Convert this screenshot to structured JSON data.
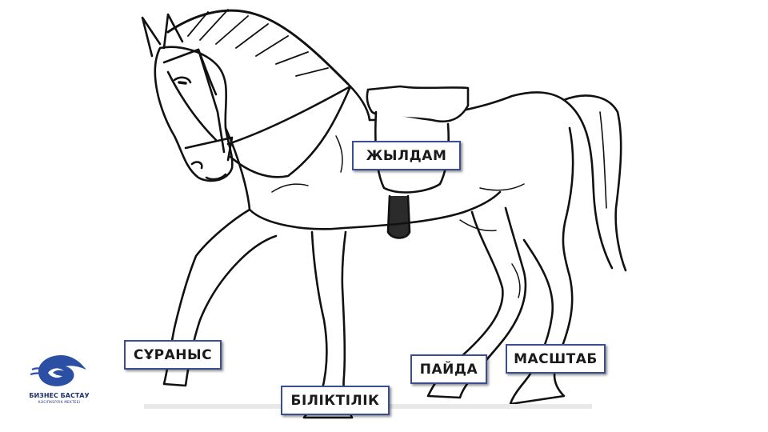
{
  "labels": {
    "speed": "ЖЫЛДАМ",
    "demand": "СҰРАНЫС",
    "skill": "БІЛІКТІЛІК",
    "profit": "ПАЙДА",
    "scale": "МАСШТАБ"
  },
  "logo": {
    "brand": "БИЗНЕС БАСТАУ",
    "subtitle": "КӘСІПКЕРЛІК МЕКТЕБІ"
  },
  "colors": {
    "label_border": "#3b4d93",
    "logo_blue": "#2a4fa3",
    "line": "#111111"
  }
}
